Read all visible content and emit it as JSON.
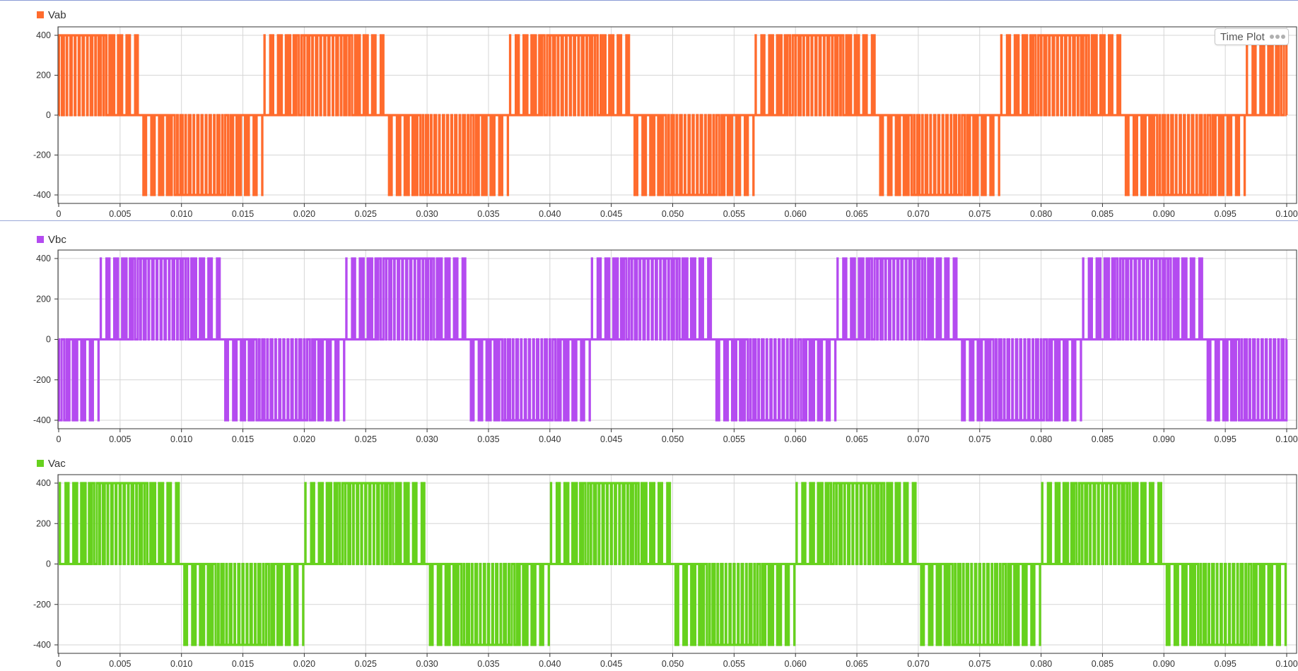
{
  "toolbar": {
    "time_plot_label": "Time Plot",
    "more_icon": "ellipsis-icon"
  },
  "chart_data": [
    {
      "type": "line",
      "series": [
        {
          "name": "Vab",
          "color": "#ff6b2d"
        }
      ],
      "phase_shift_deg": 0,
      "period": 0.02,
      "amplitude": 400,
      "xlim": [
        0,
        0.1
      ],
      "ylim": [
        -400,
        400
      ],
      "xticks": [
        "0",
        "0.005",
        "0.010",
        "0.015",
        "0.020",
        "0.025",
        "0.030",
        "0.035",
        "0.040",
        "0.045",
        "0.050",
        "0.055",
        "0.060",
        "0.065",
        "0.070",
        "0.075",
        "0.080",
        "0.085",
        "0.090",
        "0.095",
        "0.100"
      ],
      "yticks": [
        "400",
        "200",
        "0",
        "-200",
        "-400"
      ],
      "grid": true,
      "legend": "top-left"
    },
    {
      "type": "line",
      "series": [
        {
          "name": "Vbc",
          "color": "#b44bf0"
        }
      ],
      "phase_shift_deg": -120,
      "period": 0.02,
      "amplitude": 400,
      "xlim": [
        0,
        0.1
      ],
      "ylim": [
        -400,
        400
      ],
      "xticks": [
        "0",
        "0.005",
        "0.010",
        "0.015",
        "0.020",
        "0.025",
        "0.030",
        "0.035",
        "0.040",
        "0.045",
        "0.050",
        "0.055",
        "0.060",
        "0.065",
        "0.070",
        "0.075",
        "0.080",
        "0.085",
        "0.090",
        "0.095",
        "0.100"
      ],
      "yticks": [
        "400",
        "200",
        "0",
        "-200",
        "-400"
      ],
      "grid": true,
      "legend": "top-left"
    },
    {
      "type": "line",
      "series": [
        {
          "name": "Vac",
          "color": "#66d11d"
        }
      ],
      "phase_shift_deg": -60,
      "period": 0.02,
      "amplitude": 400,
      "xlim": [
        0,
        0.1
      ],
      "ylim": [
        -400,
        400
      ],
      "xticks": [
        "0",
        "0.005",
        "0.010",
        "0.015",
        "0.020",
        "0.025",
        "0.030",
        "0.035",
        "0.040",
        "0.045",
        "0.050",
        "0.055",
        "0.060",
        "0.065",
        "0.070",
        "0.075",
        "0.080",
        "0.085",
        "0.090",
        "0.095",
        "0.100"
      ],
      "yticks": [
        "400",
        "200",
        "0",
        "-200",
        "-400"
      ],
      "grid": true,
      "legend": "top-left"
    }
  ]
}
